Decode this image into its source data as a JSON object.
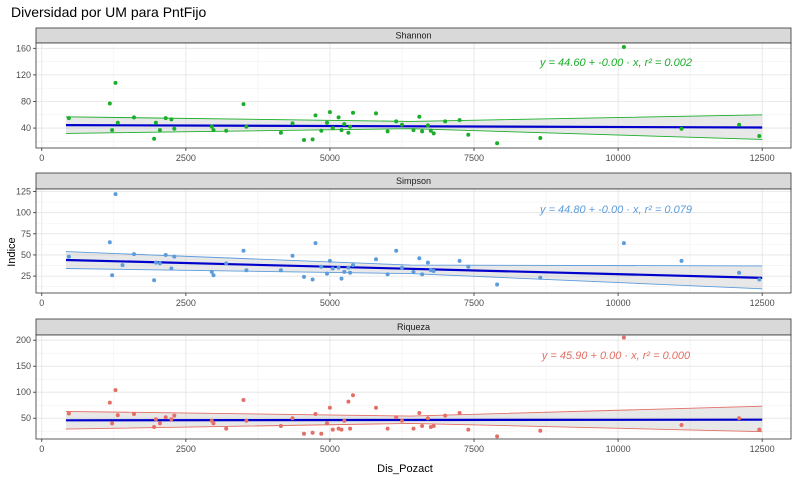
{
  "chart_data": {
    "type": "scatter",
    "title": "Diversidad por UM para PntFijo",
    "xlabel": "Dis_Pozact",
    "ylabel": "Indice",
    "xlim": [
      -100,
      13000
    ],
    "x_ticks": [
      0,
      2500,
      5000,
      7500,
      10000,
      12500
    ],
    "grid": true,
    "panels": [
      {
        "name": "Shannon",
        "color": "#1aae2a",
        "ylim": [
          10,
          168
        ],
        "y_ticks": [
          40,
          80,
          120,
          160
        ],
        "equation": "y = 44.60 + -0.00 · x,  r² = 0.002",
        "fit": {
          "intercept": 44.6,
          "slope": -0.0003
        },
        "band": {
          "x": [
            420,
            6400,
            12500
          ],
          "lower": [
            32,
            39,
            23
          ],
          "upper": [
            57,
            50,
            60
          ]
        },
        "points": [
          [
            470,
            55
          ],
          [
            1180,
            77
          ],
          [
            1220,
            37
          ],
          [
            1280,
            108
          ],
          [
            1320,
            48
          ],
          [
            1600,
            56
          ],
          [
            1950,
            24
          ],
          [
            1980,
            48
          ],
          [
            2050,
            37
          ],
          [
            2150,
            55
          ],
          [
            2250,
            53
          ],
          [
            2300,
            39
          ],
          [
            2950,
            42
          ],
          [
            2980,
            37
          ],
          [
            3200,
            36
          ],
          [
            3500,
            76
          ],
          [
            3550,
            42
          ],
          [
            4150,
            33
          ],
          [
            4350,
            47
          ],
          [
            4550,
            22
          ],
          [
            4700,
            23
          ],
          [
            4750,
            59
          ],
          [
            4850,
            36
          ],
          [
            4950,
            48
          ],
          [
            5000,
            64
          ],
          [
            5050,
            40
          ],
          [
            5150,
            56
          ],
          [
            5200,
            37
          ],
          [
            5250,
            46
          ],
          [
            5320,
            33
          ],
          [
            5350,
            42
          ],
          [
            5400,
            63
          ],
          [
            5800,
            62
          ],
          [
            6000,
            35
          ],
          [
            6150,
            50
          ],
          [
            6250,
            45
          ],
          [
            6450,
            37
          ],
          [
            6550,
            57
          ],
          [
            6600,
            35
          ],
          [
            6700,
            44
          ],
          [
            6750,
            36
          ],
          [
            6800,
            32
          ],
          [
            7000,
            50
          ],
          [
            7250,
            52
          ],
          [
            7400,
            30
          ],
          [
            7900,
            17
          ],
          [
            8650,
            25
          ],
          [
            10100,
            162
          ],
          [
            11100,
            39
          ],
          [
            12100,
            45
          ],
          [
            12450,
            28
          ]
        ]
      },
      {
        "name": "Simpson",
        "color": "#5d9cdc",
        "ylim": [
          5,
          128
        ],
        "y_ticks": [
          25,
          50,
          75,
          100,
          125
        ],
        "equation": "y = 44.80 + -0.00 · x,  r² = 0.079",
        "fit": {
          "intercept": 44.8,
          "slope": -0.00175
        },
        "band": {
          "x": [
            420,
            6400,
            12500
          ],
          "lower": [
            34,
            28,
            10
          ],
          "upper": [
            54,
            38,
            37
          ]
        },
        "points": [
          [
            470,
            48
          ],
          [
            1180,
            65
          ],
          [
            1220,
            26
          ],
          [
            1280,
            122
          ],
          [
            1400,
            38
          ],
          [
            1600,
            51
          ],
          [
            1950,
            20
          ],
          [
            1980,
            41
          ],
          [
            2050,
            40
          ],
          [
            2150,
            50
          ],
          [
            2250,
            34
          ],
          [
            2300,
            48
          ],
          [
            2950,
            30
          ],
          [
            2980,
            26
          ],
          [
            3200,
            40
          ],
          [
            3500,
            55
          ],
          [
            3550,
            32
          ],
          [
            4150,
            32
          ],
          [
            4350,
            49
          ],
          [
            4550,
            24
          ],
          [
            4700,
            21
          ],
          [
            4750,
            64
          ],
          [
            4850,
            36
          ],
          [
            4950,
            28
          ],
          [
            5000,
            43
          ],
          [
            5050,
            34
          ],
          [
            5150,
            35
          ],
          [
            5200,
            22
          ],
          [
            5250,
            30
          ],
          [
            5320,
            35
          ],
          [
            5350,
            29
          ],
          [
            5400,
            38
          ],
          [
            5800,
            45
          ],
          [
            6000,
            27
          ],
          [
            6150,
            55
          ],
          [
            6250,
            35
          ],
          [
            6450,
            30
          ],
          [
            6550,
            46
          ],
          [
            6600,
            27
          ],
          [
            6700,
            41
          ],
          [
            6750,
            32
          ],
          [
            6800,
            31
          ],
          [
            7250,
            43
          ],
          [
            7400,
            36
          ],
          [
            7900,
            15
          ],
          [
            8650,
            23
          ],
          [
            10100,
            64
          ],
          [
            11100,
            43
          ],
          [
            12100,
            29
          ],
          [
            12450,
            21
          ]
        ]
      },
      {
        "name": "Riqueza",
        "color": "#e36f66",
        "ylim": [
          10,
          210
        ],
        "y_ticks": [
          50,
          100,
          150,
          200
        ],
        "equation": "y = 45.90 + 0.00 · x,  r² = 0.000",
        "fit": {
          "intercept": 45.9,
          "slope": 0.0001
        },
        "band": {
          "x": [
            420,
            6400,
            12500
          ],
          "lower": [
            29,
            40,
            24
          ],
          "upper": [
            63,
            54,
            73
          ]
        },
        "points": [
          [
            470,
            59
          ],
          [
            1180,
            80
          ],
          [
            1220,
            40
          ],
          [
            1280,
            104
          ],
          [
            1320,
            56
          ],
          [
            1600,
            58
          ],
          [
            1950,
            33
          ],
          [
            1980,
            48
          ],
          [
            2050,
            40
          ],
          [
            2150,
            52
          ],
          [
            2250,
            48
          ],
          [
            2300,
            55
          ],
          [
            2950,
            45
          ],
          [
            2980,
            40
          ],
          [
            3200,
            30
          ],
          [
            3500,
            85
          ],
          [
            3550,
            45
          ],
          [
            4150,
            35
          ],
          [
            4350,
            50
          ],
          [
            4550,
            20
          ],
          [
            4700,
            22
          ],
          [
            4750,
            58
          ],
          [
            4850,
            20
          ],
          [
            4950,
            40
          ],
          [
            5000,
            70
          ],
          [
            5050,
            28
          ],
          [
            5150,
            30
          ],
          [
            5200,
            28
          ],
          [
            5250,
            45
          ],
          [
            5320,
            82
          ],
          [
            5350,
            30
          ],
          [
            5400,
            94
          ],
          [
            5800,
            70
          ],
          [
            6000,
            30
          ],
          [
            6150,
            52
          ],
          [
            6250,
            45
          ],
          [
            6450,
            30
          ],
          [
            6550,
            60
          ],
          [
            6600,
            35
          ],
          [
            6700,
            50
          ],
          [
            6750,
            33
          ],
          [
            6800,
            35
          ],
          [
            7000,
            55
          ],
          [
            7250,
            60
          ],
          [
            7400,
            28
          ],
          [
            7900,
            15
          ],
          [
            8650,
            26
          ],
          [
            10100,
            205
          ],
          [
            11100,
            37
          ],
          [
            12100,
            50
          ],
          [
            12450,
            28
          ]
        ]
      }
    ]
  }
}
